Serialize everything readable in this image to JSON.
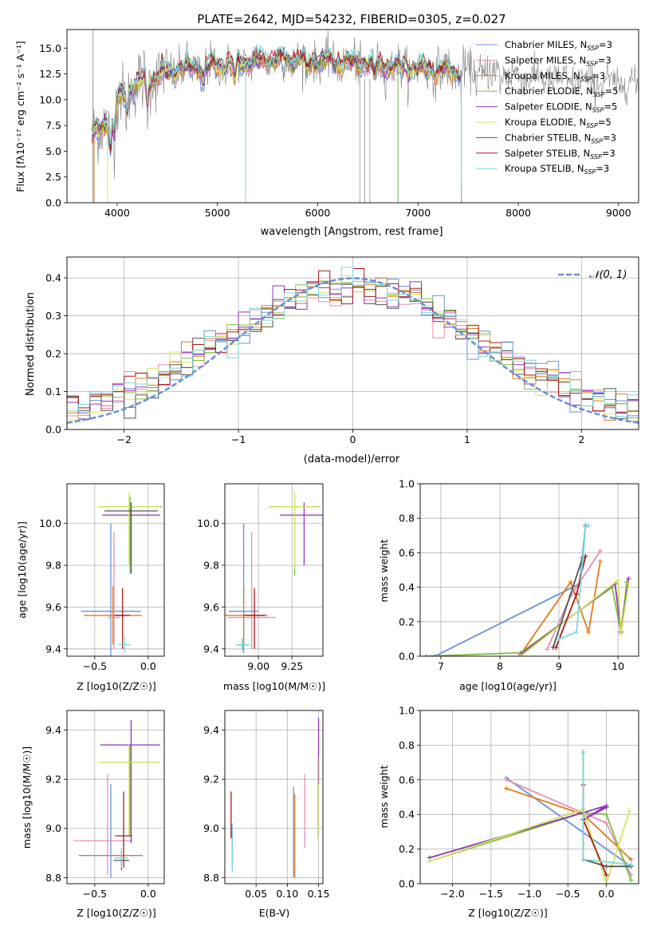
{
  "colors": {
    "chabrier_miles": "#6a8fd8",
    "salpeter_miles": "#e58fb5",
    "kroupa_miles": "#e07c1c",
    "chabrier_elodie": "#7cc240",
    "salpeter_elodie": "#9234b7",
    "kroupa_elodie": "#d6e55e",
    "chabrier_stelib": "#555555",
    "salpeter_stelib": "#a81a1a",
    "kroupa_stelib": "#7cd8dc",
    "spec_gray": "#808080",
    "grid": "#b0b0b0"
  },
  "chart_data": [
    {
      "id": "spectrum",
      "type": "line",
      "title": "PLATE=2642, MJD=54232, FIBERID=0305, z=0.027",
      "xlabel": "wavelength [Angstrom, rest frame]",
      "ylabel": "Flux [fλ10⁻¹⁷ erg cm⁻² s⁻¹ A⁻¹]",
      "xlim": [
        3500,
        9200
      ],
      "ylim": [
        0,
        16.8
      ],
      "xticks": [
        4000,
        5000,
        6000,
        7000,
        8000,
        9000
      ],
      "yticks": [
        0.0,
        2.5,
        5.0,
        7.5,
        10.0,
        12.5,
        15.0
      ],
      "legend_position": "top-right",
      "legend": [
        {
          "label": "Chabrier MILES, N",
          "sub": "SSP",
          "suffix": "=3",
          "color_key": "chabrier_miles"
        },
        {
          "label": "Salpeter MILES, N",
          "sub": "SSP",
          "suffix": "=3",
          "color_key": "salpeter_miles"
        },
        {
          "label": "Kroupa MILES, N",
          "sub": "SSP",
          "suffix": "=3",
          "color_key": "kroupa_miles"
        },
        {
          "label": "Chabrier ELODIE, N",
          "sub": "SSP",
          "suffix": "=5",
          "color_key": "chabrier_elodie"
        },
        {
          "label": "Salpeter ELODIE, N",
          "sub": "SSP",
          "suffix": "=5",
          "color_key": "salpeter_elodie"
        },
        {
          "label": "Kroupa ELODIE, N",
          "sub": "SSP",
          "suffix": "=5",
          "color_key": "kroupa_elodie"
        },
        {
          "label": "Chabrier STELIB, N",
          "sub": "SSP",
          "suffix": "=3",
          "color_key": "chabrier_stelib"
        },
        {
          "label": "Salpeter STELIB, N",
          "sub": "SSP",
          "suffix": "=3",
          "color_key": "salpeter_stelib"
        },
        {
          "label": "Kroupa STELIB, N",
          "sub": "SSP",
          "suffix": "=3",
          "color_key": "kroupa_stelib"
        }
      ],
      "continuum": [
        [
          3750,
          6.2
        ],
        [
          3850,
          7.4
        ],
        [
          3950,
          9.0
        ],
        [
          4100,
          11.0
        ],
        [
          4300,
          12.0
        ],
        [
          4600,
          12.9
        ],
        [
          5000,
          13.3
        ],
        [
          5500,
          13.9
        ],
        [
          6000,
          13.8
        ],
        [
          6500,
          13.4
        ],
        [
          7000,
          13.0
        ],
        [
          7400,
          12.7
        ],
        [
          7800,
          12.5
        ],
        [
          8200,
          12.1
        ],
        [
          8600,
          11.8
        ],
        [
          9000,
          11.6
        ],
        [
          9200,
          11.5
        ]
      ],
      "model_end": 7430,
      "data_start": 3750
    },
    {
      "id": "residuals",
      "type": "histogram",
      "xlabel": "(data-model)/error",
      "ylabel": "Normed distribution",
      "xlim": [
        -2.5,
        2.5
      ],
      "ylim": [
        0,
        0.455
      ],
      "xticks": [
        -2,
        -1,
        0,
        1,
        2
      ],
      "yticks": [
        0.0,
        0.1,
        0.2,
        0.3,
        0.4
      ],
      "bin_width": 0.1,
      "reference_curve": {
        "label": "𝒩(0, 1)",
        "mean": 0,
        "sigma": 1,
        "color": "#6a8fd8"
      },
      "legend_position": "top-right"
    },
    {
      "id": "age_vs_Z",
      "type": "errorbar",
      "xlabel": "Z [log10(Z/Z☉)]",
      "ylabel": "age  [log10(age/yr)]",
      "xlim": [
        -0.76,
        0.15
      ],
      "ylim": [
        9.365,
        10.19
      ],
      "xticks": [
        -0.5,
        0.0
      ],
      "yticks": [
        9.4,
        9.6,
        9.8,
        10.0
      ],
      "points": [
        {
          "c": "chabrier_miles",
          "x": -0.35,
          "xe": [
            0.28,
            0.28
          ],
          "y": 9.58,
          "ye": [
            0.22,
            0.42
          ]
        },
        {
          "c": "salpeter_miles",
          "x": -0.32,
          "xe": [
            0.06,
            0.06
          ],
          "y": 9.55,
          "ye": [
            0.15,
            0.41
          ]
        },
        {
          "c": "kroupa_miles",
          "x": -0.33,
          "xe": [
            0.27,
            0.27
          ],
          "y": 9.56,
          "ye": [
            0.14,
            0.14
          ]
        },
        {
          "c": "chabrier_elodie",
          "x": -0.17,
          "xe": [
            0.3,
            0.3
          ],
          "y": 10.08,
          "ye": [
            0.32,
            0.05
          ]
        },
        {
          "c": "salpeter_elodie",
          "x": -0.16,
          "xe": [
            0.27,
            0.27
          ],
          "y": 10.04,
          "ye": [
            0.24,
            0.06
          ]
        },
        {
          "c": "kroupa_elodie",
          "x": -0.18,
          "xe": [
            0.29,
            0.29
          ],
          "y": 10.08,
          "ye": [
            0.28,
            0.07
          ]
        },
        {
          "c": "chabrier_stelib",
          "x": -0.16,
          "xe": [
            0.25,
            0.25
          ],
          "y": 10.06,
          "ye": [
            0.3,
            0.04
          ]
        },
        {
          "c": "salpeter_stelib",
          "x": -0.24,
          "xe": [
            0.07,
            0.07
          ],
          "y": 9.56,
          "ye": [
            0.16,
            0.13
          ]
        },
        {
          "c": "kroupa_stelib",
          "x": -0.22,
          "xe": [
            0.06,
            0.06
          ],
          "y": 9.42,
          "ye": [
            0.04,
            0.04
          ]
        }
      ]
    },
    {
      "id": "age_vs_mass",
      "type": "errorbar",
      "xlabel": "mass [log10(M/M☉)]",
      "ylabel": "",
      "xlim": [
        8.75,
        9.48
      ],
      "ylim": [
        9.365,
        10.19
      ],
      "xticks": [
        9.0,
        9.25
      ],
      "yticks": [
        9.4,
        9.6,
        9.8,
        10.0
      ],
      "points": [
        {
          "c": "chabrier_miles",
          "x": 8.89,
          "xe": [
            0.11,
            0.11
          ],
          "y": 9.58,
          "ye": [
            0.2,
            0.42
          ]
        },
        {
          "c": "salpeter_miles",
          "x": 8.95,
          "xe": [
            0.18,
            0.18
          ],
          "y": 9.55,
          "ye": [
            0.15,
            0.41
          ]
        },
        {
          "c": "kroupa_miles",
          "x": 8.89,
          "xe": [
            0.18,
            0.18
          ],
          "y": 9.56,
          "ye": [
            0.14,
            0.14
          ]
        },
        {
          "c": "chabrier_elodie",
          "x": 9.27,
          "xe": [
            0.19,
            0.19
          ],
          "y": 10.08,
          "ye": [
            0.33,
            0.06
          ]
        },
        {
          "c": "salpeter_elodie",
          "x": 9.34,
          "xe": [
            0.18,
            0.18
          ],
          "y": 10.04,
          "ye": [
            0.24,
            0.06
          ]
        },
        {
          "c": "kroupa_elodie",
          "x": 9.27,
          "xe": [
            0.18,
            0.18
          ],
          "y": 10.08,
          "ye": [
            0.3,
            0.07
          ]
        },
        {
          "c": "chabrier_stelib",
          "x": 8.88,
          "xe": [
            0.05,
            0.05
          ],
          "y": 9.42,
          "ye": [
            0.03,
            0.03
          ]
        },
        {
          "c": "salpeter_stelib",
          "x": 8.97,
          "xe": [
            0.08,
            0.08
          ],
          "y": 9.56,
          "ye": [
            0.16,
            0.13
          ]
        },
        {
          "c": "kroupa_stelib",
          "x": 8.88,
          "xe": [
            0.05,
            0.05
          ],
          "y": 9.42,
          "ye": [
            0.03,
            0.03
          ]
        }
      ]
    },
    {
      "id": "weight_vs_age",
      "type": "line",
      "xlabel": "age  [log10(age/yr)]",
      "ylabel": "mass weight",
      "xlim": [
        6.65,
        10.35
      ],
      "ylim": [
        0,
        1.0
      ],
      "xticks": [
        7,
        8,
        9,
        10
      ],
      "yticks": [
        0.0,
        0.2,
        0.4,
        0.6,
        0.8,
        1.0
      ],
      "series": [
        {
          "c": "chabrier_miles",
          "x": [
            6.9,
            9.35,
            9.45
          ],
          "y": [
            0.0,
            0.42,
            0.76
          ]
        },
        {
          "c": "salpeter_miles",
          "x": [
            8.8,
            9.2,
            9.7
          ],
          "y": [
            0.04,
            0.35,
            0.61
          ]
        },
        {
          "c": "kroupa_miles",
          "x": [
            8.35,
            9.2,
            9.5,
            9.7
          ],
          "y": [
            0.01,
            0.43,
            0.14,
            0.55
          ]
        },
        {
          "c": "chabrier_elodie",
          "x": [
            6.75,
            8.35,
            9.9,
            10.05,
            10.15
          ],
          "y": [
            0.0,
            0.02,
            0.4,
            0.14,
            0.43
          ]
        },
        {
          "c": "salpeter_elodie",
          "x": [
            8.35,
            9.95,
            10.05,
            10.18
          ],
          "y": [
            0.01,
            0.42,
            0.14,
            0.45
          ]
        },
        {
          "c": "kroupa_elodie",
          "x": [
            8.35,
            10.0,
            10.05,
            10.18
          ],
          "y": [
            0.0,
            0.44,
            0.13,
            0.42
          ]
        },
        {
          "c": "chabrier_stelib",
          "x": [
            8.9,
            9.4
          ],
          "y": [
            0.05,
            0.57
          ]
        },
        {
          "c": "salpeter_stelib",
          "x": [
            8.95,
            9.3,
            9.45
          ],
          "y": [
            0.05,
            0.36,
            0.58
          ]
        },
        {
          "c": "kroupa_stelib",
          "x": [
            9.0,
            9.3,
            9.45,
            9.5
          ],
          "y": [
            0.1,
            0.14,
            0.75,
            0.76
          ]
        }
      ]
    },
    {
      "id": "mass_vs_Z",
      "type": "errorbar",
      "xlabel": "Z [log10(Z/Z☉)]",
      "ylabel": "mass [log10(M/M☉)]",
      "xlim": [
        -0.76,
        0.15
      ],
      "ylim": [
        8.775,
        9.48
      ],
      "xticks": [
        -0.5,
        0.0
      ],
      "yticks": [
        8.8,
        9.0,
        9.2,
        9.4
      ],
      "points": [
        {
          "c": "chabrier_miles",
          "x": -0.35,
          "xe": [
            0.3,
            0.3
          ],
          "y": 8.89,
          "ye": [
            0.09,
            0.29
          ]
        },
        {
          "c": "salpeter_miles",
          "x": -0.38,
          "xe": [
            0.32,
            0.23
          ],
          "y": 8.95,
          "ye": [
            0.14,
            0.27
          ]
        },
        {
          "c": "kroupa_miles",
          "x": -0.33,
          "xe": [
            0.27,
            0.27
          ],
          "y": 8.89,
          "ye": [
            0.0,
            0.0
          ]
        },
        {
          "c": "chabrier_elodie",
          "x": -0.17,
          "xe": [
            0.27,
            0.27
          ],
          "y": 9.27,
          "ye": [
            0.3,
            0.07
          ]
        },
        {
          "c": "salpeter_elodie",
          "x": -0.16,
          "xe": [
            0.29,
            0.27
          ],
          "y": 9.34,
          "ye": [
            0.4,
            0.1
          ]
        },
        {
          "c": "kroupa_elodie",
          "x": -0.18,
          "xe": [
            0.29,
            0.29
          ],
          "y": 9.27,
          "ye": [
            0.3,
            0.07
          ]
        },
        {
          "c": "chabrier_stelib",
          "x": -0.25,
          "xe": [
            0.07,
            0.07
          ],
          "y": 8.87,
          "ye": [
            0.04,
            0.04
          ]
        },
        {
          "c": "salpeter_stelib",
          "x": -0.23,
          "xe": [
            0.08,
            0.08
          ],
          "y": 8.97,
          "ye": [
            0.13,
            0.18
          ]
        },
        {
          "c": "kroupa_stelib",
          "x": -0.25,
          "xe": [
            0.06,
            0.06
          ],
          "y": 8.88,
          "ye": [
            0.04,
            0.04
          ]
        }
      ]
    },
    {
      "id": "mass_vs_ebv",
      "type": "errorbar",
      "xlabel": "E(B-V)",
      "ylabel": "",
      "xlim": [
        0.0,
        0.157
      ],
      "ylim": [
        8.775,
        9.48
      ],
      "xticks": [
        0.05,
        0.1,
        0.15
      ],
      "yticks": [
        8.8,
        9.0,
        9.2,
        9.4
      ],
      "points": [
        {
          "c": "chabrier_miles",
          "x": 0.11,
          "xe": [
            0,
            0
          ],
          "y": 8.98,
          "ye": [
            0.18,
            0.19
          ]
        },
        {
          "c": "salpeter_miles",
          "x": 0.128,
          "xe": [
            0,
            0
          ],
          "y": 9.07,
          "ye": [
            0.15,
            0.15
          ]
        },
        {
          "c": "kroupa_miles",
          "x": 0.112,
          "xe": [
            0,
            0
          ],
          "y": 8.97,
          "ye": [
            0.17,
            0.17
          ]
        },
        {
          "c": "chabrier_elodie",
          "x": 0.149,
          "xe": [
            0,
            0
          ],
          "y": 9.12,
          "ye": [
            0.16,
            0.17
          ]
        },
        {
          "c": "salpeter_elodie",
          "x": 0.15,
          "xe": [
            0,
            0
          ],
          "y": 9.3,
          "ye": [
            0.12,
            0.15
          ]
        },
        {
          "c": "kroupa_elodie",
          "x": 0.149,
          "xe": [
            0,
            0
          ],
          "y": 9.12,
          "ye": [
            0.16,
            0.17
          ]
        },
        {
          "c": "chabrier_stelib",
          "x": 0.012,
          "xe": [
            0,
            0
          ],
          "y": 8.93,
          "ye": [
            0.09,
            0.09
          ]
        },
        {
          "c": "salpeter_stelib",
          "x": 0.01,
          "xe": [
            0,
            0
          ],
          "y": 9.05,
          "ye": [
            0.09,
            0.1
          ]
        },
        {
          "c": "kroupa_stelib",
          "x": 0.012,
          "xe": [
            0,
            0
          ],
          "y": 8.92,
          "ye": [
            0.1,
            0.1
          ]
        }
      ]
    },
    {
      "id": "weight_vs_Z",
      "type": "line",
      "xlabel": "Z [log10(Z/Z☉)]",
      "ylabel": "mass weight",
      "xlim": [
        -2.42,
        0.42
      ],
      "ylim": [
        0,
        1.0
      ],
      "xticks": [
        -2.0,
        -1.5,
        -1.0,
        -0.5,
        0.0
      ],
      "yticks": [
        0.0,
        0.2,
        0.4,
        0.6,
        0.8,
        1.0
      ],
      "series": [
        {
          "c": "chabrier_miles",
          "x": [
            -1.3,
            0.32
          ],
          "y": [
            0.61,
            0.1
          ]
        },
        {
          "c": "salpeter_miles",
          "x": [
            -1.3,
            0.0,
            0.32
          ],
          "y": [
            0.6,
            0.35,
            0.05
          ]
        },
        {
          "c": "kroupa_miles",
          "x": [
            -1.3,
            -0.3,
            0.32
          ],
          "y": [
            0.55,
            0.4,
            0.14
          ]
        },
        {
          "c": "chabrier_elodie",
          "x": [
            -2.3,
            -0.3,
            0.0,
            0.32
          ],
          "y": [
            0.13,
            0.41,
            0.4,
            0.02
          ]
        },
        {
          "c": "salpeter_elodie",
          "x": [
            -2.3,
            0.0,
            -0.3,
            0.0
          ],
          "y": [
            0.15,
            0.45,
            0.37,
            0.44
          ]
        },
        {
          "c": "kroupa_elodie",
          "x": [
            -2.3,
            -0.3,
            0.0,
            0.3
          ],
          "y": [
            0.13,
            0.43,
            0.0,
            0.42
          ]
        },
        {
          "c": "chabrier_stelib",
          "x": [
            -0.3,
            -0.3,
            0.0,
            0.32
          ],
          "y": [
            0.76,
            0.14,
            0.1,
            0.1
          ]
        },
        {
          "c": "salpeter_stelib",
          "x": [
            -0.3,
            -0.3,
            0.0
          ],
          "y": [
            0.57,
            0.37,
            0.05
          ]
        },
        {
          "c": "kroupa_stelib",
          "x": [
            -0.3,
            -0.3,
            0.32
          ],
          "y": [
            0.76,
            0.14,
            0.11
          ]
        }
      ]
    }
  ]
}
